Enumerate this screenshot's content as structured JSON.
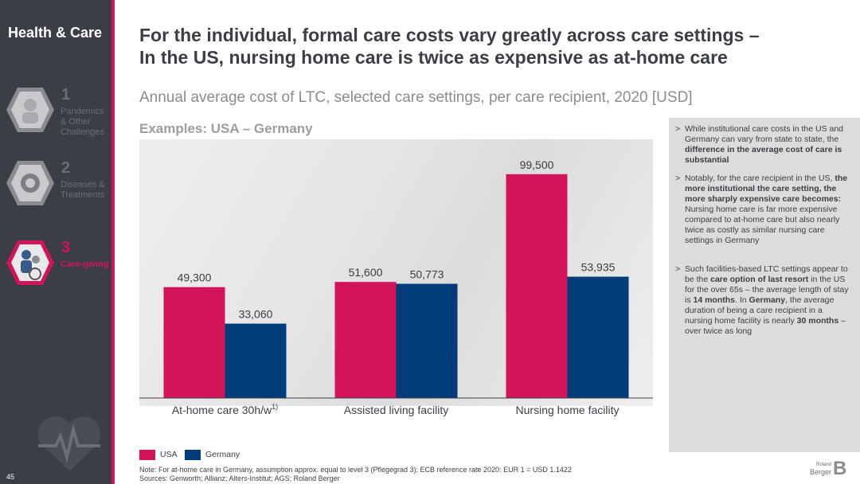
{
  "sidebar": {
    "title": "Health & Care",
    "items": [
      {
        "num": "1",
        "label": "Pandemics & Other Challenges"
      },
      {
        "num": "2",
        "label": "Diseases & Treatments"
      },
      {
        "num": "3",
        "label": "Care-giving"
      }
    ],
    "page_number": "45"
  },
  "header": {
    "title_line1": "For the individual, formal care costs vary greatly across care settings –",
    "title_line2": "In the US, nursing home care is twice as expensive as at-home care",
    "subtitle": "Annual average cost of LTC, selected care settings, per care recipient, 2020 [USD]",
    "examples": "Examples: USA – Germany"
  },
  "chart_data": {
    "type": "bar",
    "categories": [
      "At-home care 30h/w",
      "Assisted living facility",
      "Nursing home facility"
    ],
    "category_footnote": "1)",
    "series": [
      {
        "name": "USA",
        "values": [
          49300,
          51600,
          99500
        ],
        "labels": [
          "49,300",
          "51,600",
          "99,500"
        ],
        "color": "#d4145a"
      },
      {
        "name": "Germany",
        "values": [
          33060,
          50773,
          53935
        ],
        "labels": [
          "33,060",
          "50,773",
          "53,935"
        ],
        "color": "#003c7a"
      }
    ],
    "ylim": [
      0,
      115000
    ]
  },
  "legend": {
    "usa": "USA",
    "germany": "Germany"
  },
  "right_panel": {
    "bullet_symbol": ">",
    "b1": {
      "t1": "While institutional care costs in the US and Germany can vary from state to state, the ",
      "b1": "difference in the average cost of care is substantial"
    },
    "b2": {
      "t1": "Notably, for the care recipient in the US, ",
      "b1": "the more institutional the care setting, the more sharply expensive care becomes:",
      "t2": " Nursing home care is far more expensive compared to at-home care but also nearly twice as costly as similar nursing care settings in Germany"
    },
    "b3": {
      "t1": "Such facilities-based LTC settings appear to be the ",
      "b1": "care option of last resort",
      "t2": " in the US for the over 65s – the average length of stay is ",
      "b2": "14 months",
      "t3": ". In ",
      "b3": "Germany",
      "t4": ", the average duration of being a care recipient in a nursing home facility is nearly ",
      "b4": "30 months",
      "t5": " – over twice as long"
    }
  },
  "notes": {
    "note": "Note: For at-home care in Germany, assumption approx. equal to level 3 (Pflegegrad 3); ECB reference rate 2020: EUR 1 = USD 1.1422",
    "sources": "Sources: Genworth; Allianz; Alters-Institut; AGS; Roland Berger"
  },
  "logo": {
    "line1": "Roland",
    "line2": "Berger",
    "mark": "B"
  },
  "colors": {
    "accent": "#d4145a",
    "navy": "#003c7a",
    "sidebar": "#3b3e44"
  }
}
